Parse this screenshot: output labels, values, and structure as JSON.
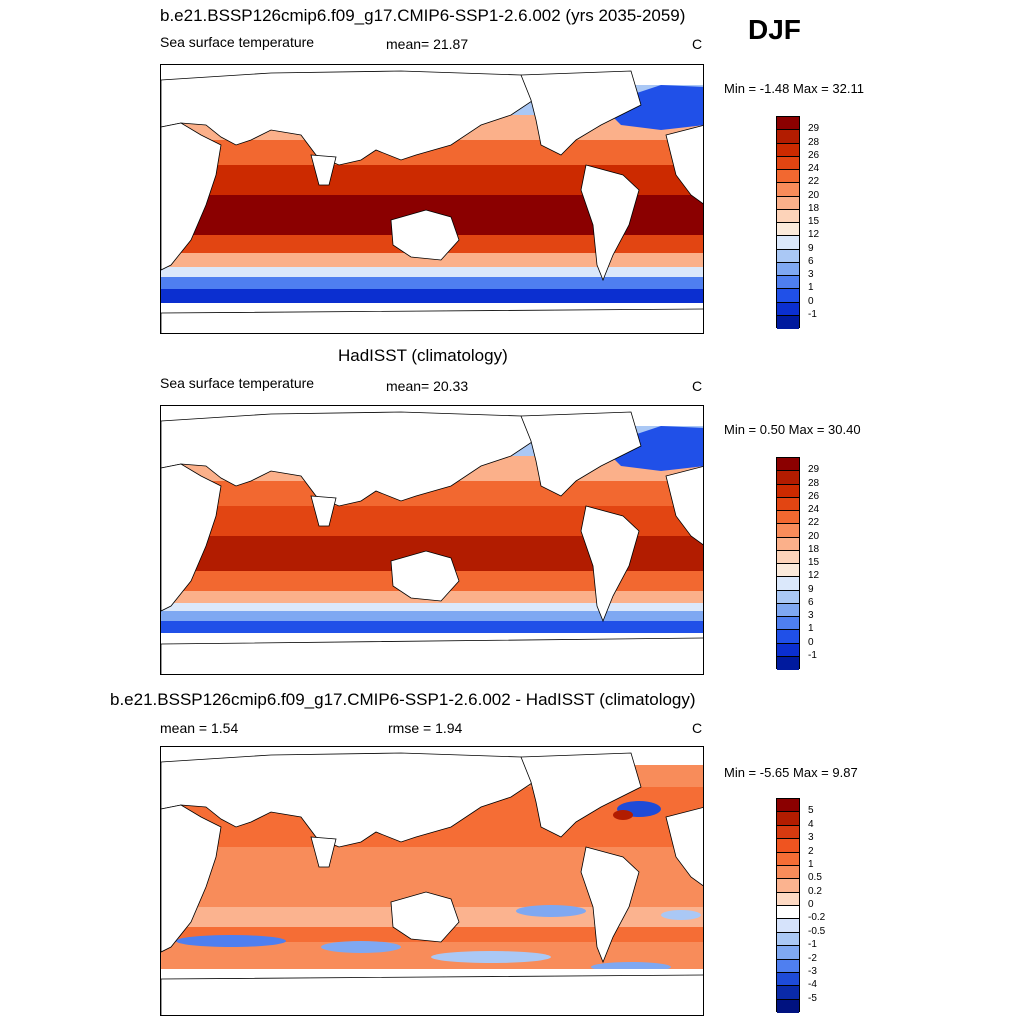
{
  "season_label": "DJF",
  "panels": [
    {
      "title": "b.e21.BSSP126cmip6.f09_g17.CMIP6-SSP1-2.6.002 (yrs 2035-2059)",
      "left_label": "Sea surface temperature",
      "center_label": "mean=  21.87",
      "units": "C",
      "minmax": "Min =  -1.48 Max =  32.11",
      "colorbar_ticks": [
        "29",
        "28",
        "26",
        "24",
        "22",
        "20",
        "18",
        "15",
        "12",
        "9",
        "6",
        "3",
        "1",
        "0",
        "-1"
      ]
    },
    {
      "title": "HadISST (climatology)",
      "left_label": "Sea surface temperature",
      "center_label": "mean=  20.33",
      "units": "C",
      "minmax": "Min =   0.50 Max =  30.40",
      "colorbar_ticks": [
        "29",
        "28",
        "26",
        "24",
        "22",
        "20",
        "18",
        "15",
        "12",
        "9",
        "6",
        "3",
        "1",
        "0",
        "-1"
      ]
    },
    {
      "title": "b.e21.BSSP126cmip6.f09_g17.CMIP6-SSP1-2.6.002 - HadISST (climatology)",
      "left_label": "mean =   1.54",
      "center_label": "rmse =   1.94",
      "units": "C",
      "minmax": "Min =  -5.65 Max =   9.87",
      "colorbar_ticks": [
        "5",
        "4",
        "3",
        "2",
        "1",
        "0.5",
        "0.2",
        "0",
        "-0.2",
        "-0.5",
        "-1",
        "-2",
        "-3",
        "-4",
        "-5"
      ]
    }
  ],
  "colors": {
    "sst_scale": [
      "#8b0000",
      "#b21c00",
      "#cc2a00",
      "#e24512",
      "#f26830",
      "#f98c5a",
      "#fbb08a",
      "#fdd3b9",
      "#fbeadb",
      "#dbe8fb",
      "#aac8f5",
      "#7fa8f2",
      "#4f7ff0",
      "#2050e8",
      "#0b2fd0",
      "#001a9e"
    ],
    "diff_scale": [
      "#8b0000",
      "#b21c00",
      "#d63a10",
      "#ef5420",
      "#f56d35",
      "#f88c5a",
      "#fbb38f",
      "#fdd9c3",
      "#ffffff",
      "#d6e3fb",
      "#aac8f5",
      "#7fa8f2",
      "#4f7ff0",
      "#1e4bd8",
      "#0a2aa8",
      "#001280"
    ],
    "land": "#ffffff",
    "coast": "#000000"
  }
}
